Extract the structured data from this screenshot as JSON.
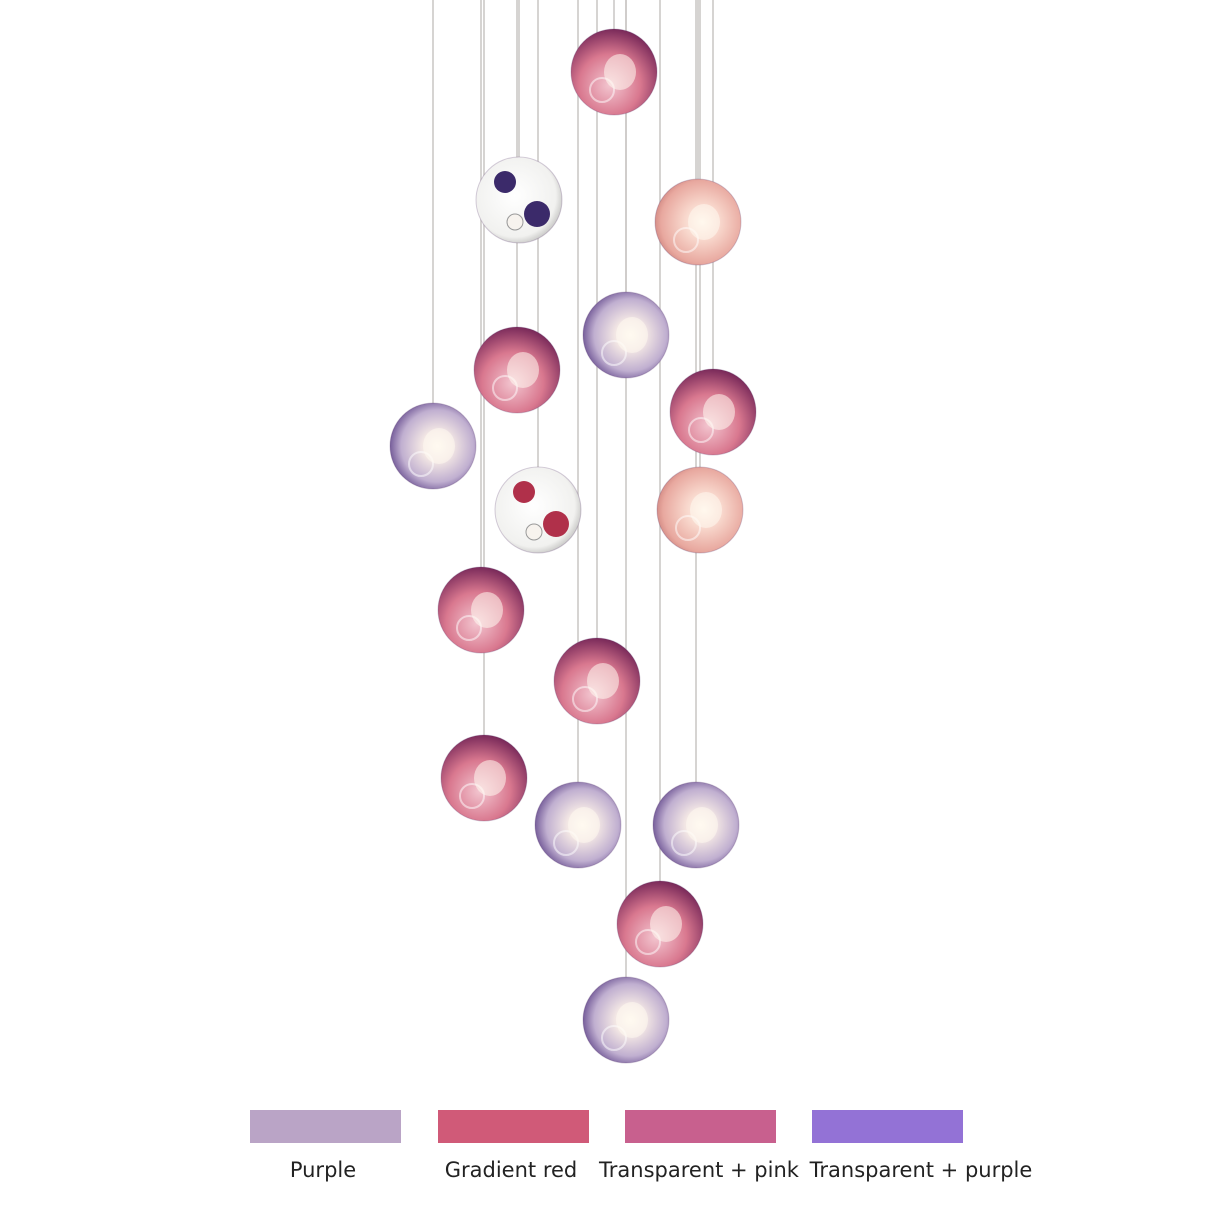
{
  "swatches": [
    {
      "label": "Purple",
      "color": "#baa4c6"
    },
    {
      "label": "Gradient red",
      "color": "#d05a78"
    },
    {
      "label": "Transparent + pink",
      "color": "#c8608e"
    },
    {
      "label": "Transparent + purple",
      "color": "#9372d6"
    }
  ]
}
